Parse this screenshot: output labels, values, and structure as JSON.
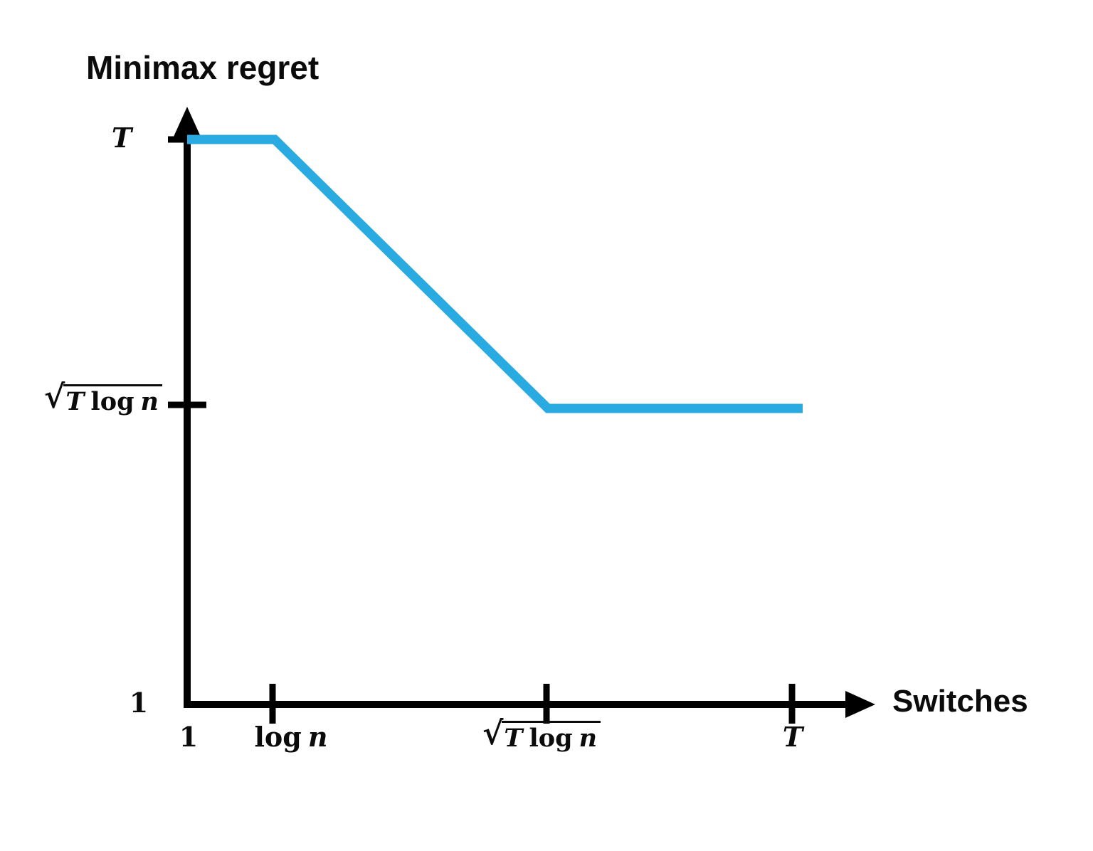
{
  "chart_data": {
    "type": "line",
    "title": "Minimax regret",
    "xlabel": "Switches",
    "ylabel": "Minimax regret",
    "x_ticks": [
      "1",
      "log n",
      "√(T log n)",
      "T"
    ],
    "y_ticks": [
      "1",
      "√(T log n)",
      "T"
    ],
    "axis_color": "#000000",
    "grid": false,
    "legend": "none",
    "series": [
      {
        "name": "minimax-regret-vs-switches",
        "color": "#29ABE2",
        "points": [
          {
            "x": "1",
            "y": "T"
          },
          {
            "x": "log n",
            "y": "T"
          },
          {
            "x": "√(T log n)",
            "y": "√(T log n)"
          },
          {
            "x": "T",
            "y": "√(T log n)"
          }
        ]
      }
    ]
  },
  "math": {
    "sqrt_sign": "√",
    "T": "T",
    "log": "log",
    "n": "n",
    "one": "1"
  }
}
